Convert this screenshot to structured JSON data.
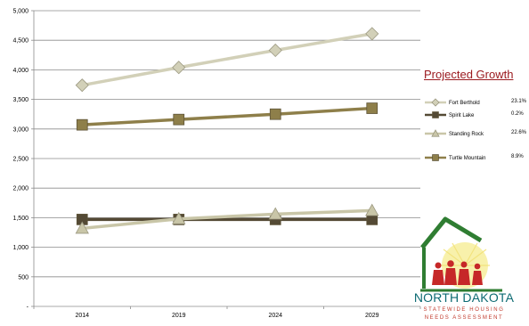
{
  "chart_data": {
    "type": "line",
    "title": "",
    "xlabel": "",
    "ylabel": "",
    "categories": [
      "2014",
      "2019",
      "2024",
      "2029"
    ],
    "ylim": [
      0,
      5000
    ],
    "yticks": [
      "-",
      "500",
      "1,000",
      "1,500",
      "2,000",
      "2,500",
      "3,000",
      "3,500",
      "4,000",
      "4,500",
      "5,000"
    ],
    "ytick_values": [
      0,
      500,
      1000,
      1500,
      2000,
      2500,
      3000,
      3500,
      4000,
      4500,
      5000
    ],
    "grid": true,
    "legend_position": "right",
    "series": [
      {
        "name": "Fort Berthold",
        "values": [
          3740,
          4040,
          4330,
          4610
        ],
        "color": "#d2d0b8",
        "marker": "diamond",
        "growth": "23.1%"
      },
      {
        "name": "Spirit Lake",
        "values": [
          1470,
          1470,
          1470,
          1470
        ],
        "color": "#544a35",
        "marker": "square",
        "growth": "0.2%"
      },
      {
        "name": "Standing Rock",
        "values": [
          1320,
          1480,
          1560,
          1620
        ],
        "color": "#c9c6a8",
        "marker": "triangle",
        "growth": "22.6%"
      },
      {
        "name": "Turtle Mountain",
        "values": [
          3070,
          3160,
          3250,
          3350
        ],
        "color": "#8e7f4a",
        "marker": "square",
        "growth": "8.9%"
      }
    ]
  },
  "legend": {
    "title": "Projected Growth"
  },
  "logo": {
    "line1": "NORTH DAKOTA",
    "line2": "STATEWIDE HOUSING",
    "line3": "NEEDS ASSESSMENT"
  }
}
